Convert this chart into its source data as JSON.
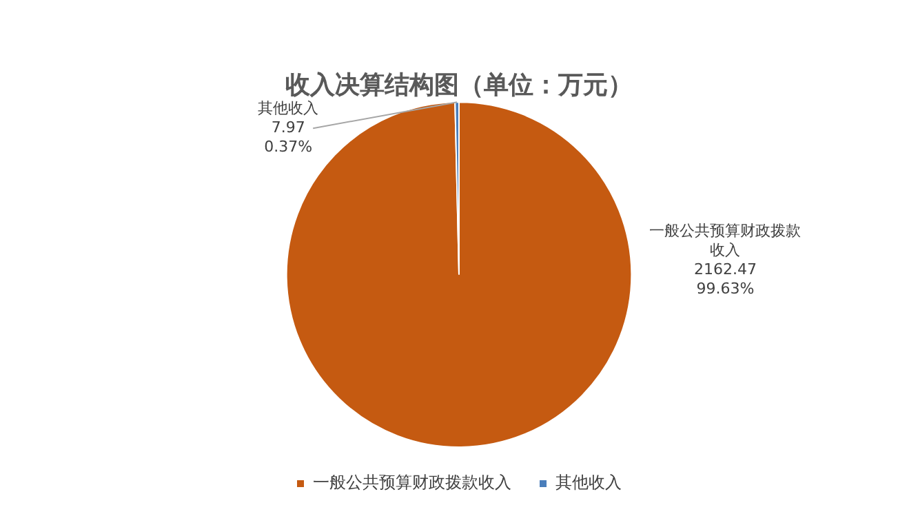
{
  "chart_data": {
    "type": "pie",
    "title": "收入决算结构图（单位：万元）",
    "categories": [
      "一般公共预算财政拨款收入",
      "其他收入"
    ],
    "values": [
      2162.47,
      7.97
    ],
    "colors": [
      "#c55a11",
      "#4a7ebb"
    ],
    "value_labels": [
      "2162.47\n99.63%",
      "7.97\n0.37%"
    ],
    "legend": "bottom"
  }
}
